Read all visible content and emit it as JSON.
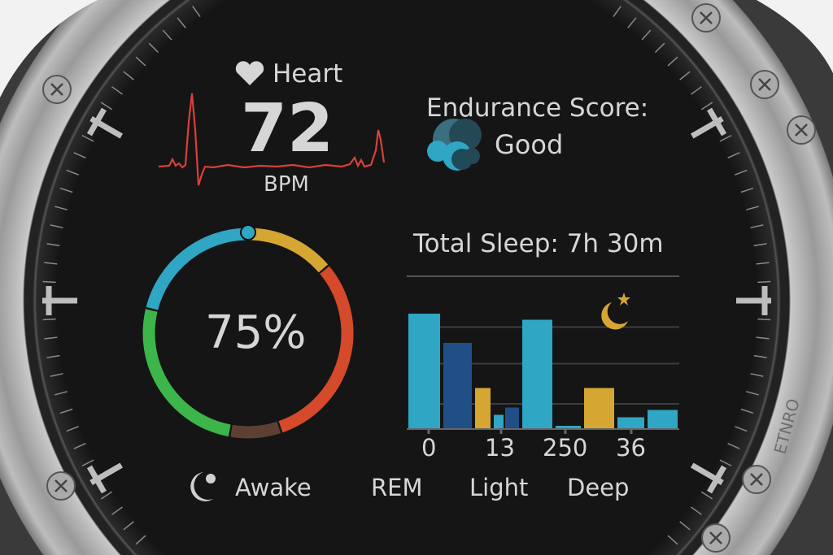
{
  "colors": {
    "text": "#d6d6d6",
    "heart_line": "#d8413a",
    "ring_blue": "#2fa6c4",
    "ring_gold": "#d6a632",
    "ring_red": "#d44a2a",
    "ring_brown": "#5e4032",
    "ring_green": "#3cb54a",
    "bar_cyan": "#2fa6c4",
    "bar_navy": "#1f4f86",
    "bar_gold": "#d6a632"
  },
  "heart": {
    "icon": "heart-icon",
    "label": "Heart",
    "value": "72",
    "unit": "BPM"
  },
  "endurance": {
    "label": "Endurance Score:",
    "icon": "endurance-cloud-icon",
    "value": "Good"
  },
  "ring": {
    "value_label": "75%",
    "progress_percent": 75,
    "segments": [
      {
        "color": "#d6a632",
        "fraction": 0.14
      },
      {
        "color": "#d44a2a",
        "fraction": 0.31
      },
      {
        "color": "#5e4032",
        "fraction": 0.08
      },
      {
        "color": "#3cb54a",
        "fraction": 0.26
      },
      {
        "color": "#2fa6c4",
        "fraction": 0.21
      }
    ]
  },
  "sleep": {
    "title": "Total Sleep: 7h 30m",
    "icon": "moon-star-icon",
    "chart_data": {
      "type": "bar",
      "ylim": [
        0,
        100
      ],
      "grid": true,
      "gridlines": [
        20,
        53,
        83
      ],
      "tick_labels": [
        "0",
        "13",
        "250",
        "36"
      ],
      "values": [
        94,
        70,
        33,
        11,
        17,
        89,
        2,
        33,
        9,
        15
      ],
      "colors": [
        "#2fa6c4",
        "#1f4f86",
        "#d6a632",
        "#2fa6c4",
        "#1f4f86",
        "#2fa6c4",
        "#2fa6c4",
        "#d6a632",
        "#2fa6c4",
        "#2fa6c4"
      ]
    },
    "legend_icon": "sleep-awake-icon",
    "legend": [
      "Awake",
      "REM",
      "Light",
      "Deep"
    ]
  },
  "bezel": {
    "brand": "ETNRO"
  }
}
